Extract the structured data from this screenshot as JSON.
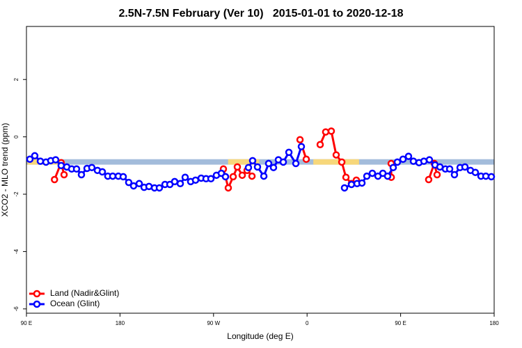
{
  "chart_data": {
    "type": "line",
    "title": "2.5N-7.5N February (Ver 10)   2015-01-01 to 2020-12-18",
    "xlabel": "Longitude (deg E)",
    "ylabel": "XCO2 - MLO trend (ppm)",
    "xlim": [
      90,
      540
    ],
    "ylim": [
      -6.15,
      3.85
    ],
    "xticks": [
      {
        "value": 90,
        "label": "90 E"
      },
      {
        "value": 180,
        "label": "180"
      },
      {
        "value": 270,
        "label": "90 W"
      },
      {
        "value": 360,
        "label": "0"
      },
      {
        "value": 450,
        "label": "90 E"
      },
      {
        "value": 540,
        "label": "180"
      }
    ],
    "yticks": [
      2,
      0,
      -2,
      -4,
      -6
    ],
    "legend": "bottom-left",
    "band_range": [
      -0.97,
      -0.78
    ],
    "ocean_color": "#a3bcdb",
    "land_color": "#f7d77a",
    "land_spans": [
      [
        91,
        123
      ],
      [
        284,
        314
      ],
      [
        366,
        410
      ]
    ],
    "series": [
      {
        "name": "Land (Nadir&Glint)",
        "color": "#ff0000",
        "x": [
          117,
          123.4,
          126.2,
          null,
          279.5,
          284.2,
          288.9,
          292.9,
          297.6,
          302.3,
          307,
          null,
          353.2,
          359.2,
          null,
          372.6,
          377.9,
          383.3,
          388,
          393.4,
          397.4,
          402.7,
          407.4,
          null,
          440.9,
          441,
          null,
          477,
          482.4,
          485.1
        ],
        "values": [
          -1.49,
          -0.9,
          -1.32,
          null,
          -1.12,
          -1.78,
          -1.39,
          -1.05,
          -1.34,
          -1.17,
          -1.37,
          null,
          -0.1,
          -0.78,
          null,
          -0.27,
          0.17,
          0.2,
          -0.63,
          -0.88,
          -1.41,
          -1.63,
          -1.51,
          null,
          -0.93,
          -1.41,
          null,
          -1.49,
          -0.93,
          -1.32
        ]
      },
      {
        "name": "Ocean (Glint)",
        "color": "#0000ff",
        "x": [
          93.3,
          98,
          103.4,
          108.8,
          113.4,
          118.1,
          123.4,
          128.8,
          133.5,
          138.2,
          142.9,
          148.3,
          152.9,
          158.3,
          163,
          168.3,
          173,
          178.4,
          183.1,
          188.4,
          193.1,
          198.5,
          203.2,
          207.9,
          213.2,
          217.9,
          223.3,
          228,
          232.6,
          238,
          242.7,
          248,
          252.7,
          258.1,
          262.8,
          267.5,
          272.8,
          277.5,
          281.5,
          null,
          303.6,
          307.6,
          312.3,
          318.4,
          323,
          327.7,
          332.4,
          337.1,
          342.5,
          349.2,
          354.5,
          null,
          396,
          402.7,
          408.1,
          412.8,
          417.5,
          422.8,
          428.2,
          432.9,
          437.5,
          442.9,
          446.9,
          452.3,
          457.6,
          462.3,
          467.7,
          472.4,
          477.7,
          483.1,
          487.8,
          493.1,
          497.2,
          501.8,
          507.2,
          511.9,
          517.2,
          521.9,
          527.3,
          532,
          537.3
        ],
        "values": [
          -0.78,
          -0.66,
          -0.85,
          -0.88,
          -0.83,
          -0.8,
          -1.0,
          -1.05,
          -1.12,
          -1.12,
          -1.32,
          -1.1,
          -1.07,
          -1.17,
          -1.22,
          -1.37,
          -1.37,
          -1.37,
          -1.39,
          -1.59,
          -1.71,
          -1.63,
          -1.76,
          -1.73,
          -1.78,
          -1.78,
          -1.66,
          -1.66,
          -1.56,
          -1.63,
          -1.41,
          -1.56,
          -1.51,
          -1.44,
          -1.46,
          -1.46,
          -1.34,
          -1.27,
          -1.39,
          null,
          -1.07,
          -0.83,
          -1.05,
          -1.37,
          -0.93,
          -1.07,
          -0.8,
          -0.88,
          -0.54,
          -0.93,
          -0.34,
          null,
          -1.78,
          -1.66,
          -1.63,
          -1.61,
          -1.37,
          -1.27,
          -1.37,
          -1.27,
          -1.37,
          -1.07,
          -0.88,
          -0.78,
          -0.68,
          -0.85,
          -0.9,
          -0.85,
          -0.8,
          -0.98,
          -1.05,
          -1.12,
          -1.12,
          -1.32,
          -1.07,
          -1.05,
          -1.17,
          -1.24,
          -1.37,
          -1.37,
          -1.39
        ]
      }
    ]
  }
}
